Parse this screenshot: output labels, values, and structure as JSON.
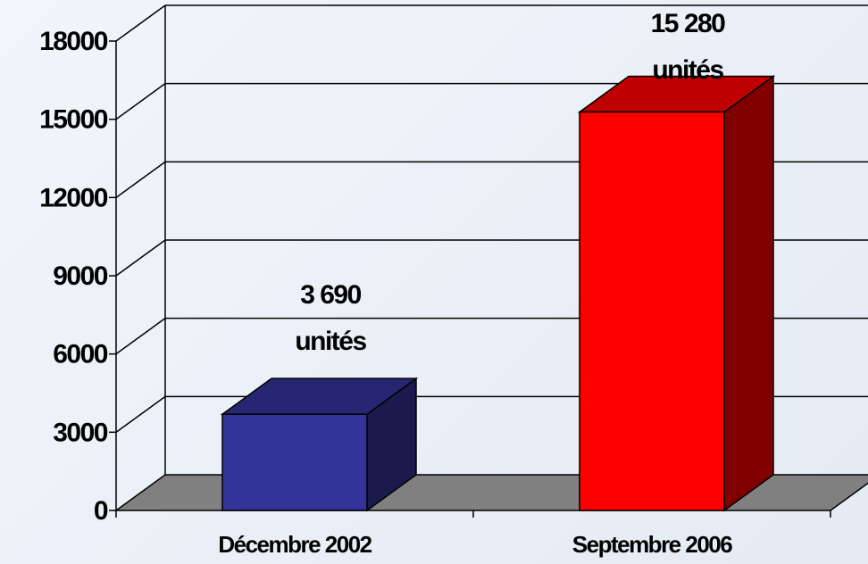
{
  "chart_data": {
    "type": "bar3d",
    "categories": [
      "Décembre 2002",
      "Septembre 2006"
    ],
    "values": [
      3690,
      15280
    ],
    "value_labels": [
      [
        "3 690",
        "unités"
      ],
      [
        "15 280",
        "unités"
      ]
    ],
    "colors": [
      "#333399",
      "#ff0000"
    ],
    "ylim": [
      0,
      18000
    ],
    "yticks": [
      0,
      3000,
      6000,
      9000,
      12000,
      15000,
      18000
    ],
    "grid": true
  }
}
